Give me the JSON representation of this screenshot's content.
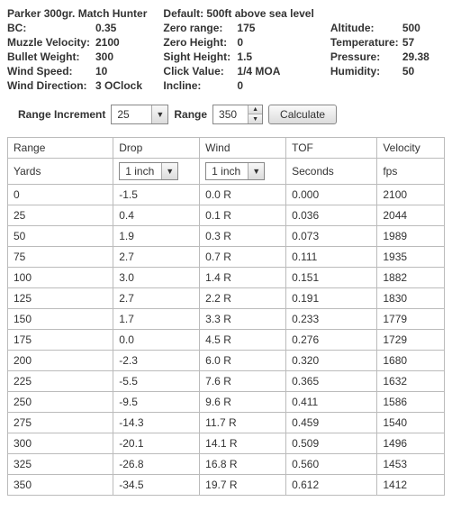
{
  "header": {
    "title": "Parker 300gr. Match Hunter",
    "default_line": "Default: 500ft above sea level",
    "left": {
      "bc": {
        "label": "BC:",
        "value": "0.35"
      },
      "mv": {
        "label": "Muzzle Velocity:",
        "value": "2100"
      },
      "bw": {
        "label": "Bullet Weight:",
        "value": "300"
      },
      "ws": {
        "label": "Wind Speed:",
        "value": "10"
      },
      "wd": {
        "label": "Wind Direction:",
        "value": "3 OClock"
      }
    },
    "mid": {
      "zr": {
        "label": "Zero range:",
        "value": "175"
      },
      "zh": {
        "label": "Zero Height:",
        "value": "0"
      },
      "sh": {
        "label": "Sight Height:",
        "value": "1.5"
      },
      "cv": {
        "label": "Click Value:",
        "value": "1/4 MOA"
      },
      "inc": {
        "label": "Incline:",
        "value": "0"
      }
    },
    "right": {
      "alt": {
        "label": "Altitude:",
        "value": "500"
      },
      "tmp": {
        "label": "Temperature:",
        "value": "57"
      },
      "prs": {
        "label": "Pressure:",
        "value": "29.38"
      },
      "hum": {
        "label": "Humidity:",
        "value": "50"
      }
    }
  },
  "controls": {
    "ri_label": "Range Increment",
    "ri_value": "25",
    "range_label": "Range",
    "range_value": "350",
    "calc_label": "Calculate"
  },
  "table": {
    "headers": {
      "range": "Range",
      "drop": "Drop",
      "wind": "Wind",
      "tof": "TOF",
      "vel": "Velocity"
    },
    "units": {
      "range": "Yards",
      "drop": "1 inch",
      "wind": "1 inch",
      "tof": "Seconds",
      "vel": "fps"
    },
    "rows": [
      {
        "r": "0",
        "d": "-1.5",
        "w": "0.0 R",
        "t": "0.000",
        "v": "2100"
      },
      {
        "r": "25",
        "d": "0.4",
        "w": "0.1 R",
        "t": "0.036",
        "v": "2044"
      },
      {
        "r": "50",
        "d": "1.9",
        "w": "0.3 R",
        "t": "0.073",
        "v": "1989"
      },
      {
        "r": "75",
        "d": "2.7",
        "w": "0.7 R",
        "t": "0.111",
        "v": "1935"
      },
      {
        "r": "100",
        "d": "3.0",
        "w": "1.4 R",
        "t": "0.151",
        "v": "1882"
      },
      {
        "r": "125",
        "d": "2.7",
        "w": "2.2 R",
        "t": "0.191",
        "v": "1830"
      },
      {
        "r": "150",
        "d": "1.7",
        "w": "3.3 R",
        "t": "0.233",
        "v": "1779"
      },
      {
        "r": "175",
        "d": "0.0",
        "w": "4.5 R",
        "t": "0.276",
        "v": "1729"
      },
      {
        "r": "200",
        "d": "-2.3",
        "w": "6.0 R",
        "t": "0.320",
        "v": "1680"
      },
      {
        "r": "225",
        "d": "-5.5",
        "w": "7.6 R",
        "t": "0.365",
        "v": "1632"
      },
      {
        "r": "250",
        "d": "-9.5",
        "w": "9.6 R",
        "t": "0.411",
        "v": "1586"
      },
      {
        "r": "275",
        "d": "-14.3",
        "w": "11.7 R",
        "t": "0.459",
        "v": "1540"
      },
      {
        "r": "300",
        "d": "-20.1",
        "w": "14.1 R",
        "t": "0.509",
        "v": "1496"
      },
      {
        "r": "325",
        "d": "-26.8",
        "w": "16.8 R",
        "t": "0.560",
        "v": "1453"
      },
      {
        "r": "350",
        "d": "-34.5",
        "w": "19.7 R",
        "t": "0.612",
        "v": "1412"
      }
    ]
  }
}
